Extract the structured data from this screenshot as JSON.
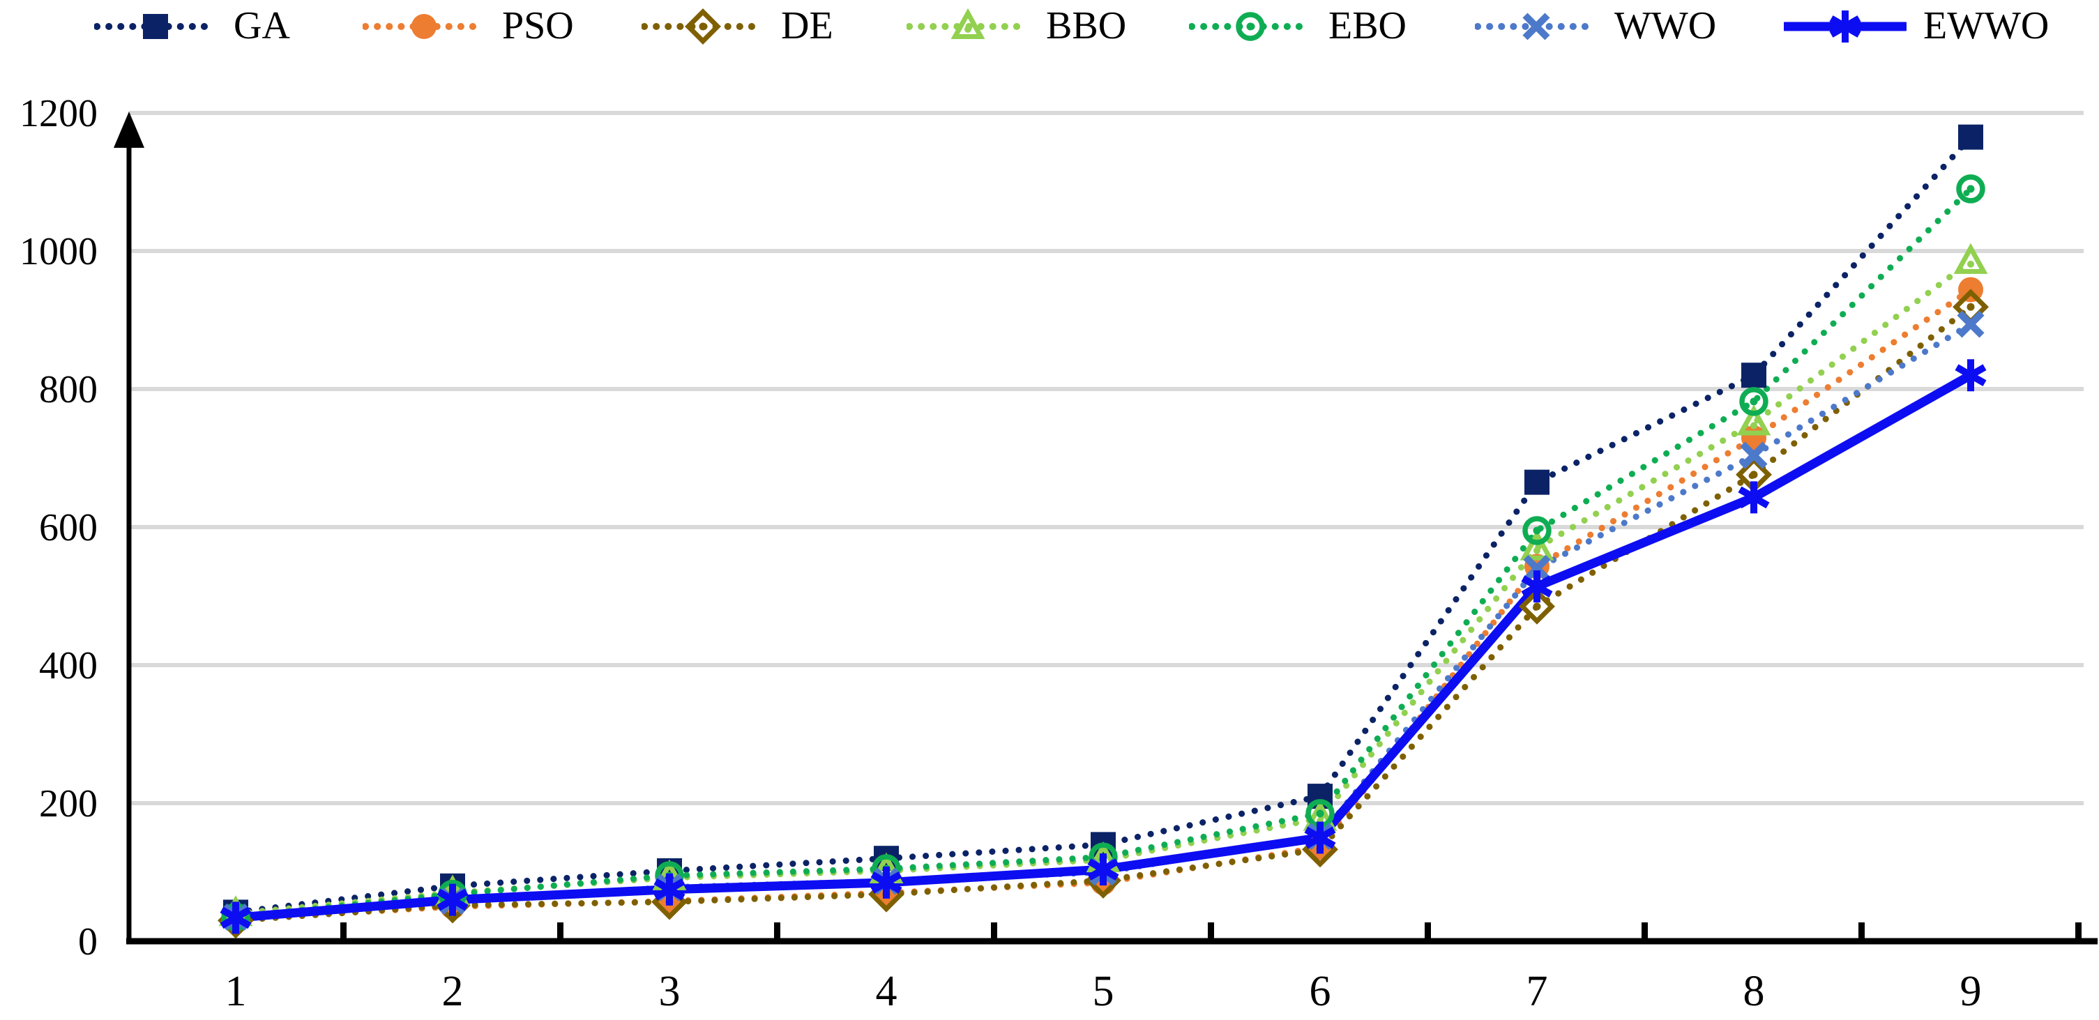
{
  "figure": {
    "background": "#FFFFFF",
    "text_color": "#000000"
  },
  "legend": {
    "position": "top",
    "items": [
      {
        "label": "GA",
        "marker": "filled-square",
        "line": "dotted",
        "color": "#0B2366"
      },
      {
        "label": "PSO",
        "marker": "filled-circle",
        "line": "dotted",
        "color": "#ED7D31"
      },
      {
        "label": "DE",
        "marker": "open-diamond-dot",
        "line": "dotted",
        "color": "#7E6000"
      },
      {
        "label": "BBO",
        "marker": "open-triangle",
        "line": "dotted",
        "color": "#92D050"
      },
      {
        "label": "EBO",
        "marker": "open-circle-dot",
        "line": "dotted",
        "color": "#0FAD53"
      },
      {
        "label": "WWO",
        "marker": "x",
        "line": "dotted",
        "color": "#4D79CA"
      },
      {
        "label": "EWWO",
        "marker": "asterisk",
        "line": "solid",
        "color": "#0D0DF2"
      }
    ]
  },
  "chart_data": {
    "type": "line",
    "title": "",
    "xlabel": "",
    "ylabel": "",
    "x": [
      1,
      2,
      3,
      4,
      5,
      6,
      7,
      8,
      9
    ],
    "x_tick_labels": [
      "1",
      "2",
      "3",
      "4",
      "5",
      "6",
      "7",
      "8",
      "9"
    ],
    "y_ticks": [
      0,
      200,
      400,
      600,
      800,
      1000,
      1200
    ],
    "ylim": [
      0,
      1200
    ],
    "grid": true,
    "gridline_color": "#D9D9D9",
    "axis_color": "#000000",
    "legend_position": "top",
    "series": [
      {
        "name": "GA",
        "color": "#0B2366",
        "marker": "filled-square",
        "line_style": "dotted",
        "values": [
          42,
          80,
          102,
          120,
          140,
          210,
          665,
          820,
          1165
        ]
      },
      {
        "name": "PSO",
        "color": "#ED7D31",
        "marker": "filled-circle",
        "line_style": "dotted",
        "values": [
          32,
          50,
          58,
          70,
          85,
          136,
          543,
          729,
          944
        ]
      },
      {
        "name": "DE",
        "color": "#7E6000",
        "marker": "open-diamond-dot",
        "line_style": "dotted",
        "values": [
          30,
          52,
          57,
          68,
          88,
          133,
          485,
          676,
          919
        ]
      },
      {
        "name": "BBO",
        "color": "#92D050",
        "marker": "open-triangle",
        "line_style": "dotted",
        "values": [
          40,
          70,
          92,
          102,
          118,
          178,
          570,
          751,
          985
        ]
      },
      {
        "name": "EBO",
        "color": "#0FAD53",
        "marker": "open-circle-dot",
        "line_style": "dotted",
        "values": [
          35,
          68,
          95,
          105,
          122,
          185,
          595,
          782,
          1090
        ]
      },
      {
        "name": "WWO",
        "color": "#4D79CA",
        "marker": "x",
        "line_style": "dotted",
        "values": [
          35,
          58,
          78,
          87,
          100,
          152,
          540,
          704,
          894
        ]
      },
      {
        "name": "EWWO",
        "color": "#0D0DF2",
        "marker": "asterisk",
        "line_style": "solid",
        "values": [
          34,
          60,
          75,
          85,
          104,
          150,
          514,
          643,
          820
        ]
      }
    ]
  }
}
